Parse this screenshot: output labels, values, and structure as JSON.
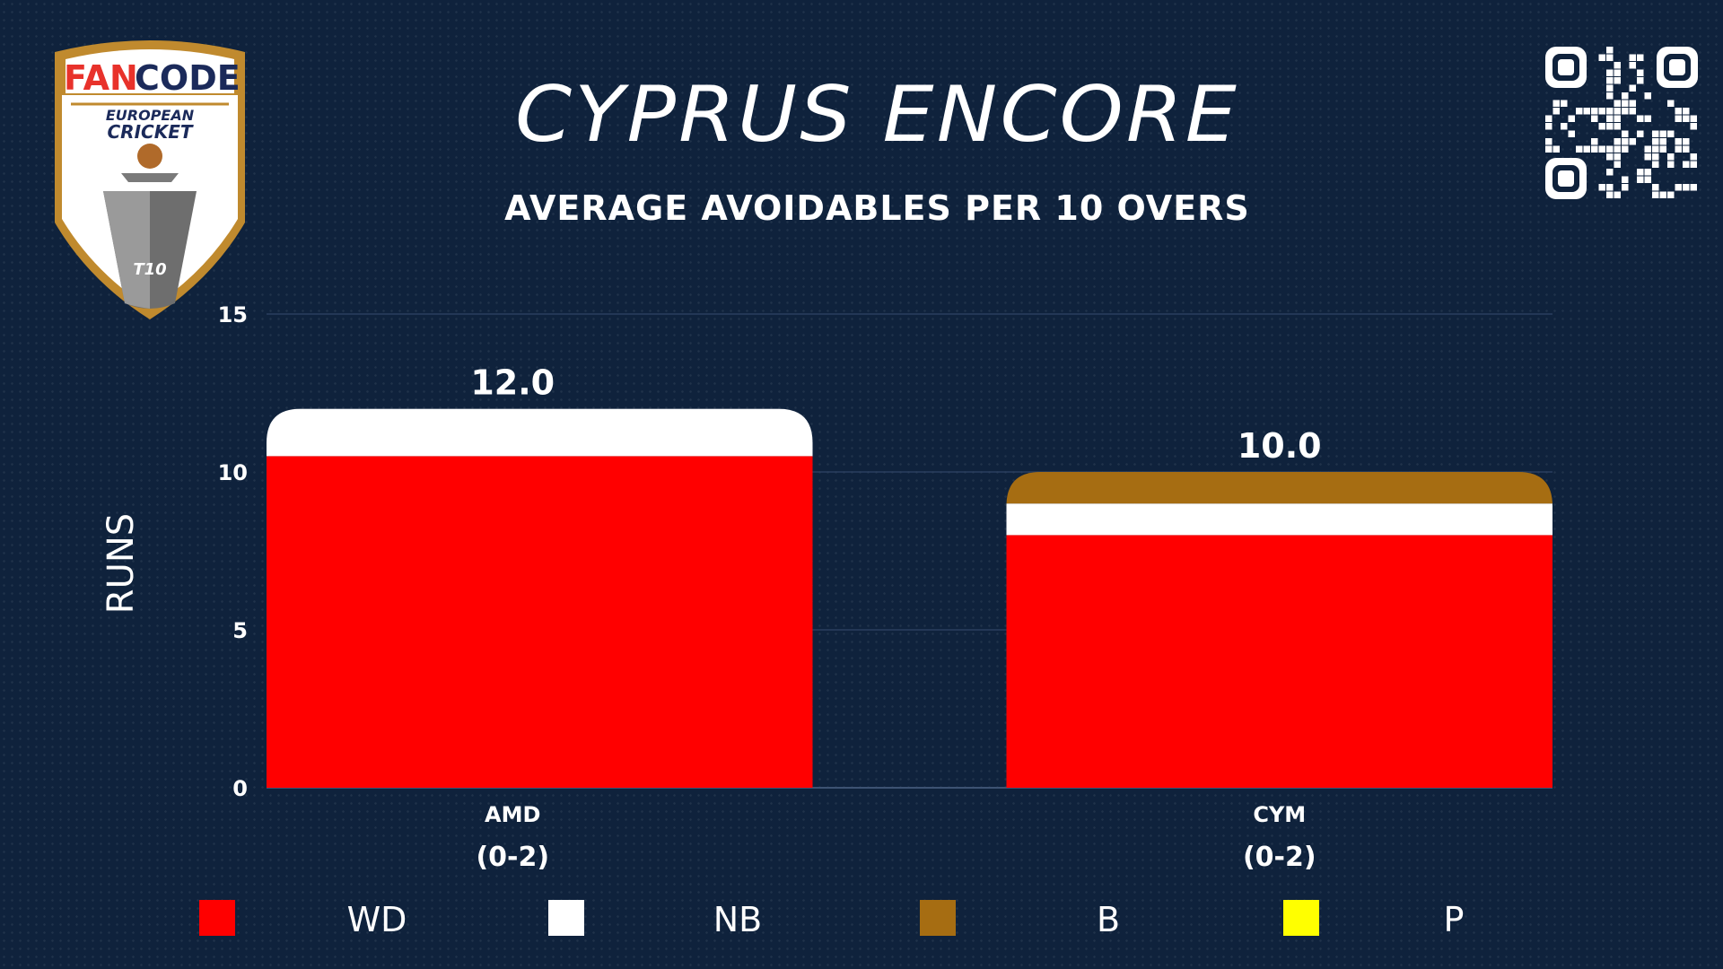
{
  "header": {
    "title": "CYPRUS ENCORE",
    "subtitle": "AVERAGE AVOIDABLES PER 10 OVERS"
  },
  "logo": {
    "brand_left": "FAN",
    "brand_right": "CODE",
    "line1": "EUROPEAN",
    "line2": "CRICKET",
    "badge": "T10"
  },
  "colors": {
    "background": "#0f223c",
    "WD": "#ff0000",
    "NB": "#ffffff",
    "B": "#a66d12",
    "P": "#ffff00",
    "gold": "#c08a2e"
  },
  "chart_data": {
    "type": "bar",
    "stacked": true,
    "categories": [
      "AMD",
      "CYM"
    ],
    "category_sublabels": [
      "(0-2)",
      "(0-2)"
    ],
    "ylabel": "RUNS",
    "ylim": [
      0,
      15
    ],
    "yticks": [
      0,
      5,
      10,
      15
    ],
    "grid": true,
    "legend_position": "bottom",
    "series": [
      {
        "name": "WD",
        "color": "#ff0000",
        "values": [
          10.5,
          8.0
        ]
      },
      {
        "name": "NB",
        "color": "#ffffff",
        "values": [
          1.5,
          1.0
        ]
      },
      {
        "name": "B",
        "color": "#a66d12",
        "values": [
          0.0,
          1.0
        ]
      },
      {
        "name": "P",
        "color": "#ffff00",
        "values": [
          0.0,
          0.0
        ]
      }
    ],
    "totals": [
      "12.0",
      "10.0"
    ]
  }
}
